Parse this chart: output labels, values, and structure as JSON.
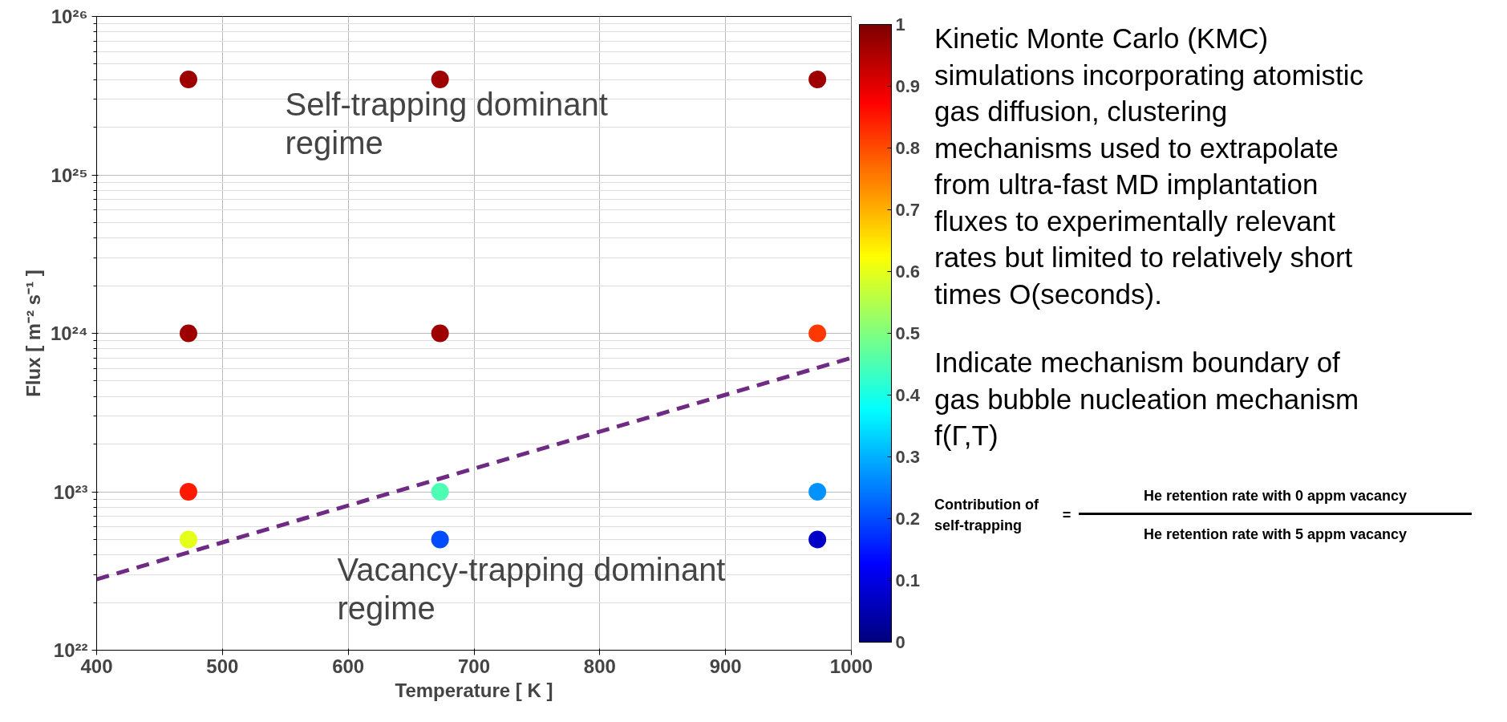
{
  "chart_data": {
    "type": "scatter",
    "xlabel": "Temperature [ K ]",
    "ylabel": "Flux [ m⁻² s⁻¹ ]",
    "xlim": [
      400,
      1000
    ],
    "xticks": [
      400,
      500,
      600,
      700,
      800,
      900,
      1000
    ],
    "ylim": [
      1e+22,
      1e+26
    ],
    "yticks": [
      {
        "value": 1e+22,
        "label": "10²²"
      },
      {
        "value": 1e+23,
        "label": "10²³"
      },
      {
        "value": 1e+24,
        "label": "10²⁴"
      },
      {
        "value": 1e+25,
        "label": "10²⁵"
      },
      {
        "value": 1e+26,
        "label": "10²⁶"
      }
    ],
    "log": "y",
    "grid": true,
    "clim": [
      0,
      1
    ],
    "cticks": [
      0,
      0.1,
      0.2,
      0.3,
      0.4,
      0.5,
      0.6,
      0.7,
      0.8,
      0.9,
      1
    ],
    "series": [
      {
        "marker": "circle",
        "x": [
          473,
          473,
          473,
          473,
          673,
          673,
          673,
          673,
          973,
          973,
          973,
          973
        ],
        "values": [
          4e+25,
          1e+24,
          1e+23,
          5e+22,
          4e+25,
          1e+24,
          1e+23,
          5e+22,
          4e+25,
          1e+24,
          1e+23,
          5e+22
        ],
        "colors": [
          "#9e0000",
          "#9e0000",
          "#ff1900",
          "#e5ff19",
          "#9e0000",
          "#9e0000",
          "#4cffb2",
          "#004cff",
          "#9e0000",
          "#ff3800",
          "#0093ff",
          "#0000c6"
        ]
      },
      {
        "type": "line",
        "x": [
          400,
          1000
        ],
        "values": [
          2.8e+22,
          7e+23
        ],
        "color": "#6f2a83",
        "line_style": "dashed"
      }
    ],
    "annotations": [
      "Self-trapping dominant regime",
      "Vacancy-trapping dominant regime",
      "Kinetic Monte Carlo (KMC) simulations incorporating atomistic gas diffusion, clustering mechanisms used to extrapolate from ultra-fast MD implantation fluxes to experimentally relevant rates but limited to relatively short times O(seconds).",
      "Indicate mechanism boundary of gas bubble nucleation mechanism f(Γ,T)",
      "Contribution of self-trapping",
      "=",
      "He retention rate with 0 appm vacancy",
      "He retention rate with 5 appm vacancy"
    ]
  }
}
